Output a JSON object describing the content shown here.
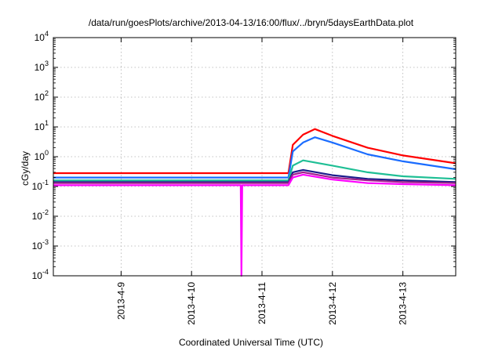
{
  "chart_data": {
    "type": "line",
    "title": "/data/run/goesPlots/archive/2013-04-13/16:00/flux/../bryn/5daysEarthData.plot",
    "xlabel": "Coordinated Universal Time (UTC)",
    "ylabel": "cGy/day",
    "yscale": "log",
    "ylim": [
      0.0001,
      10000
    ],
    "xlim": [
      "2013-04-08T00:55",
      "2013-04-13T18:00"
    ],
    "grid": true,
    "legend": "none",
    "x_ticks": [
      "2013-4-9",
      "2013-4-10",
      "2013-4-11",
      "2013-4-12",
      "2013-4-13"
    ],
    "y_tick_labels": [
      {
        "base": "10",
        "exp": "-4"
      },
      {
        "base": "10",
        "exp": "-3"
      },
      {
        "base": "10",
        "exp": "-2"
      },
      {
        "base": "10",
        "exp": "-1"
      },
      {
        "base": "10",
        "exp": "0"
      },
      {
        "base": "10",
        "exp": "1"
      },
      {
        "base": "10",
        "exp": "2"
      },
      {
        "base": "10",
        "exp": "3"
      },
      {
        "base": "10",
        "exp": "4"
      }
    ],
    "series": [
      {
        "color": "#ff0000",
        "x": [
          "2013-04-08T00:55",
          "2013-04-09T00:00",
          "2013-04-10T00:00",
          "2013-04-11T00:00",
          "2013-04-11T09:00",
          "2013-04-11T10:30",
          "2013-04-11T14:00",
          "2013-04-11T18:00",
          "2013-04-12T00:00",
          "2013-04-12T12:00",
          "2013-04-13T00:00",
          "2013-04-13T18:00"
        ],
        "y": [
          0.28,
          0.28,
          0.28,
          0.28,
          0.28,
          2.5,
          5.5,
          8.5,
          5.0,
          2.0,
          1.1,
          0.6
        ]
      },
      {
        "color": "#1a6cff",
        "x": [
          "2013-04-08T00:55",
          "2013-04-09T00:00",
          "2013-04-10T00:00",
          "2013-04-11T00:00",
          "2013-04-11T09:00",
          "2013-04-11T10:30",
          "2013-04-11T14:00",
          "2013-04-11T18:00",
          "2013-04-12T00:00",
          "2013-04-12T12:00",
          "2013-04-13T00:00",
          "2013-04-13T18:00"
        ],
        "y": [
          0.2,
          0.2,
          0.2,
          0.2,
          0.2,
          1.5,
          3.0,
          4.5,
          3.0,
          1.2,
          0.7,
          0.38
        ]
      },
      {
        "color": "#1fbf95",
        "x": [
          "2013-04-08T00:55",
          "2013-04-09T00:00",
          "2013-04-10T00:00",
          "2013-04-11T00:00",
          "2013-04-11T09:00",
          "2013-04-11T10:30",
          "2013-04-11T14:00",
          "2013-04-12T00:00",
          "2013-04-12T12:00",
          "2013-04-13T00:00",
          "2013-04-13T18:00"
        ],
        "y": [
          0.16,
          0.16,
          0.16,
          0.16,
          0.16,
          0.5,
          0.75,
          0.5,
          0.3,
          0.22,
          0.18
        ]
      },
      {
        "color": "#1c1c8c",
        "x": [
          "2013-04-08T00:55",
          "2013-04-09T00:00",
          "2013-04-10T00:00",
          "2013-04-11T00:00",
          "2013-04-11T09:00",
          "2013-04-11T10:30",
          "2013-04-11T14:00",
          "2013-04-12T00:00",
          "2013-04-12T12:00",
          "2013-04-13T00:00",
          "2013-04-13T18:00"
        ],
        "y": [
          0.14,
          0.14,
          0.14,
          0.14,
          0.14,
          0.3,
          0.36,
          0.24,
          0.18,
          0.16,
          0.14
        ]
      },
      {
        "color": "#a0208c",
        "x": [
          "2013-04-08T00:55",
          "2013-04-09T00:00",
          "2013-04-10T00:00",
          "2013-04-11T00:00",
          "2013-04-11T09:00",
          "2013-04-11T10:30",
          "2013-04-11T14:00",
          "2013-04-12T00:00",
          "2013-04-12T12:00",
          "2013-04-13T00:00",
          "2013-04-13T18:00"
        ],
        "y": [
          0.13,
          0.13,
          0.13,
          0.13,
          0.13,
          0.25,
          0.3,
          0.2,
          0.16,
          0.14,
          0.13
        ]
      },
      {
        "color": "#ff00ff",
        "x": [
          "2013-04-08T00:55",
          "2013-04-09T00:00",
          "2013-04-10T00:00",
          "2013-04-10T16:45",
          "2013-04-10T17:00",
          "2013-04-10T17:15",
          "2013-04-11T00:00",
          "2013-04-11T09:00",
          "2013-04-11T10:30",
          "2013-04-11T14:00",
          "2013-04-12T00:00",
          "2013-04-12T12:00",
          "2013-04-13T00:00",
          "2013-04-13T18:00"
        ],
        "y": [
          0.11,
          0.11,
          0.11,
          0.11,
          0.0001,
          0.11,
          0.11,
          0.11,
          0.2,
          0.25,
          0.17,
          0.13,
          0.12,
          0.11
        ]
      }
    ]
  }
}
